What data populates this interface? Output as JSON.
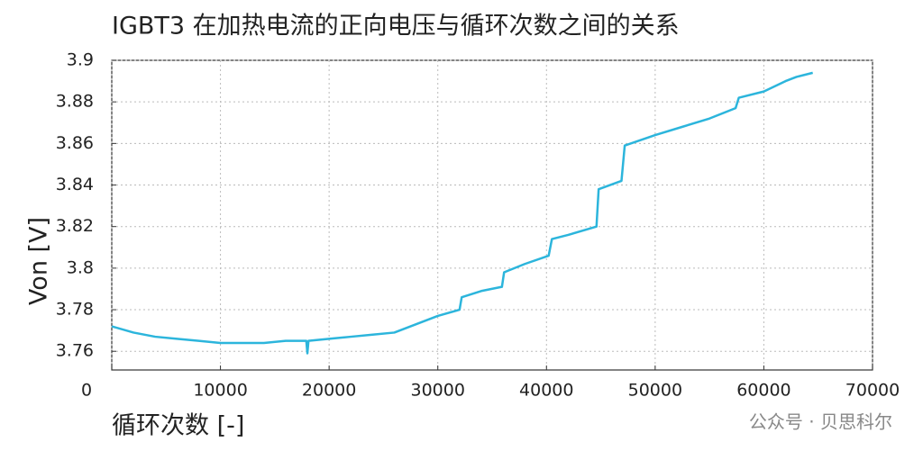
{
  "chart_data": {
    "type": "line",
    "title": "IGBT3 在加热电流的正向电压与循环次数之间的关系",
    "xlabel": "循环次数 [-]",
    "ylabel": "Von [V]",
    "watermark": "公众号 · 贝思科尔",
    "x": [
      0,
      2000,
      4000,
      6000,
      8000,
      10000,
      12000,
      14000,
      16000,
      17900,
      18000,
      18100,
      20000,
      22000,
      24000,
      26000,
      28000,
      30000,
      32000,
      32200,
      34000,
      35900,
      36100,
      38000,
      40200,
      40500,
      42000,
      44600,
      44800,
      46900,
      47200,
      50000,
      52500,
      55000,
      57400,
      57700,
      60000,
      62000,
      63000,
      64500
    ],
    "series": [
      {
        "color": "#2cb5dc",
        "values": [
          3.772,
          3.769,
          3.767,
          3.766,
          3.765,
          3.764,
          3.764,
          3.764,
          3.765,
          3.765,
          3.759,
          3.765,
          3.766,
          3.767,
          3.768,
          3.769,
          3.773,
          3.777,
          3.78,
          3.786,
          3.789,
          3.791,
          3.798,
          3.802,
          3.806,
          3.814,
          3.816,
          3.82,
          3.838,
          3.842,
          3.859,
          3.864,
          3.868,
          3.872,
          3.877,
          3.882,
          3.885,
          3.89,
          3.892,
          3.894
        ]
      }
    ],
    "xlim": [
      0,
      70000
    ],
    "xticks": [
      0,
      10000,
      20000,
      30000,
      40000,
      50000,
      60000,
      70000
    ],
    "ylim": [
      3.751,
      3.9
    ],
    "yticks": [
      3.76,
      3.78,
      3.8,
      3.82,
      3.84,
      3.86,
      3.88,
      3.9
    ],
    "grid": true
  }
}
